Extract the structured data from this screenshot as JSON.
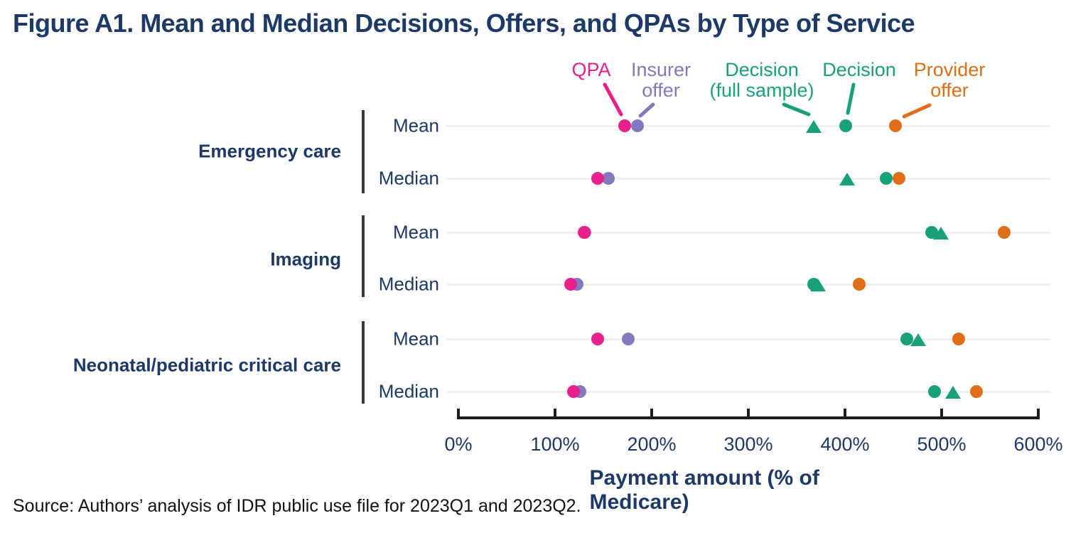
{
  "title": "Figure A1. Mean and Median Decisions, Offers, and QPAs by Type of Service",
  "source": "Source: Authors’ analysis of IDR public use file for 2023Q1 and 2023Q2.",
  "colors": {
    "qpa": "#E8208C",
    "insurer_offer": "#8478BE",
    "decision_full_sample": "#18A179",
    "decision": "#18A179",
    "provider_offer": "#E06E16",
    "navy": "#1C3968",
    "axis": "#1C1C1C",
    "gridline": "#F1F1F1",
    "category_bar": "#3A3A3A"
  },
  "legend": [
    {
      "id": "qpa",
      "label": "QPA",
      "lines": [
        "QPA"
      ],
      "marker": "circle",
      "color": "#E8208C"
    },
    {
      "id": "insurer_offer",
      "label": "Insurer offer",
      "lines": [
        "Insurer",
        "offer"
      ],
      "marker": "circle",
      "color": "#8478BE"
    },
    {
      "id": "decision_full_sample",
      "label": "Decision (full sample)",
      "lines": [
        "Decision",
        "(full sample)"
      ],
      "marker": "triangle",
      "color": "#18A179"
    },
    {
      "id": "decision",
      "label": "Decision",
      "lines": [
        "Decision"
      ],
      "marker": "circle",
      "color": "#18A179"
    },
    {
      "id": "provider_offer",
      "label": "Provider offer",
      "lines": [
        "Provider",
        "offer"
      ],
      "marker": "circle",
      "color": "#E06E16"
    }
  ],
  "chart_data": {
    "type": "scatter",
    "title": "Figure A1. Mean and Median Decisions, Offers, and QPAs by Type of Service",
    "xlabel": "Payment amount (% of Medicare)",
    "ylabel": "",
    "xlim": [
      0,
      600
    ],
    "xticks": [
      "0%",
      "100%",
      "200%",
      "300%",
      "400%",
      "500%",
      "600%"
    ],
    "xtick_values": [
      0,
      100,
      200,
      300,
      400,
      500,
      600
    ],
    "grid": "horizontal-light",
    "legend_position": "top-annotations",
    "units": "percent of Medicare",
    "categories": [
      "Emergency care",
      "Imaging",
      "Neonatal/pediatric critical care"
    ],
    "row_labels": [
      "Mean",
      "Median"
    ],
    "rows": [
      {
        "category": "Emergency care",
        "stat": "Mean",
        "qpa": 172,
        "insurer_offer": 185,
        "decision_full_sample": 368,
        "decision": 401,
        "provider_offer": 452
      },
      {
        "category": "Emergency care",
        "stat": "Median",
        "qpa": 144,
        "insurer_offer": 155,
        "decision_full_sample": 402,
        "decision": 443,
        "provider_offer": 456
      },
      {
        "category": "Imaging",
        "stat": "Mean",
        "qpa": 130,
        "insurer_offer": 131,
        "decision_full_sample": 499,
        "decision": 490,
        "provider_offer": 565
      },
      {
        "category": "Imaging",
        "stat": "Median",
        "qpa": 116,
        "insurer_offer": 123,
        "decision_full_sample": 372,
        "decision": 368,
        "provider_offer": 415
      },
      {
        "category": "Neonatal/pediatric critical care",
        "stat": "Mean",
        "qpa": 144,
        "insurer_offer": 176,
        "decision_full_sample": 476,
        "decision": 464,
        "provider_offer": 518
      },
      {
        "category": "Neonatal/pediatric critical care",
        "stat": "Median",
        "qpa": 119,
        "insurer_offer": 126,
        "decision_full_sample": 512,
        "decision": 493,
        "provider_offer": 536
      }
    ]
  }
}
